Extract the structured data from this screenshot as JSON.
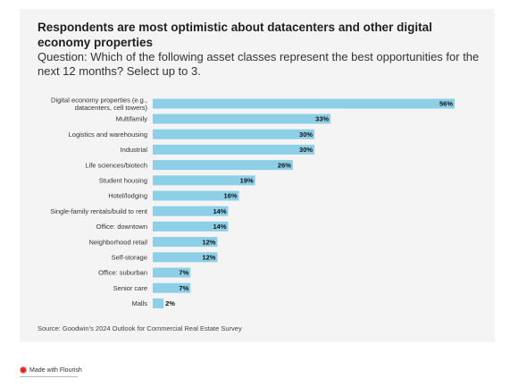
{
  "title": "Respondents are most optimistic about datacenters and other digital economy properties",
  "subtitle": "Question: Which of the following asset classes represent the best opportunities for the next 12 months? Select up to 3.",
  "source": "Source: Goodwin’s 2024 Outlook for Commercial Real Estate Survey",
  "footer": {
    "made_with": "Made with Flourish"
  },
  "colors": {
    "bar": "#8ecfe8",
    "background": "#f4f4f4",
    "brand_dot": "#d62b1e"
  },
  "chart_data": {
    "type": "bar",
    "orientation": "horizontal",
    "categories": [
      "Digital economy properties (e.g., datacenters, cell towers)",
      "Multifamily",
      "Logistics and warehousing",
      "Industrial",
      "Life sciences/biotech",
      "Student housing",
      "Hotel/lodging",
      "Single-family rentals/build to rent",
      "Office: downtown",
      "Neighborhood retail",
      "Self-storage",
      "Office: suburban",
      "Senior care",
      "Malls"
    ],
    "category_lines": [
      [
        "Digital economy properties (e.g.,",
        "datacenters, cell towers)"
      ],
      [
        "Multifamily"
      ],
      [
        "Logistics and warehousing"
      ],
      [
        "Industrial"
      ],
      [
        "Life sciences/biotech"
      ],
      [
        "Student housing"
      ],
      [
        "Hotel/lodging"
      ],
      [
        "Single-family rentals/build to rent"
      ],
      [
        "Office: downtown"
      ],
      [
        "Neighborhood retail"
      ],
      [
        "Self-storage"
      ],
      [
        "Office: suburban"
      ],
      [
        "Senior care"
      ],
      [
        "Malls"
      ]
    ],
    "values": [
      56,
      33,
      30,
      30,
      26,
      19,
      16,
      14,
      14,
      12,
      12,
      7,
      7,
      2
    ],
    "value_labels": [
      "56%",
      "33%",
      "30%",
      "30%",
      "26%",
      "19%",
      "16%",
      "14%",
      "14%",
      "12%",
      "12%",
      "7%",
      "7%",
      "2%"
    ],
    "unit": "%",
    "xlim": [
      0,
      56
    ],
    "grid": false,
    "legend": "none"
  }
}
